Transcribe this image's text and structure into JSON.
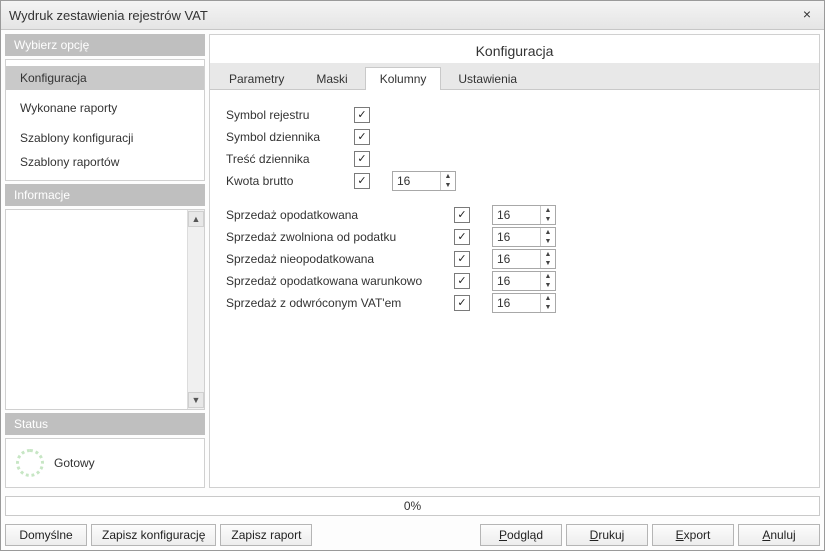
{
  "window": {
    "title": "Wydruk zestawienia rejestrów VAT"
  },
  "sidebar": {
    "options_header": "Wybierz opcję",
    "items": [
      {
        "label": "Konfiguracja",
        "selected": true
      },
      {
        "label": "Wykonane raporty",
        "selected": false
      },
      {
        "label": "Szablony konfiguracji",
        "selected": false
      },
      {
        "label": "Szablony raportów",
        "selected": false
      }
    ],
    "info_header": "Informacje",
    "status_header": "Status",
    "status_text": "Gotowy"
  },
  "main": {
    "title": "Konfiguracja",
    "tabs": [
      {
        "label": "Parametry",
        "active": false
      },
      {
        "label": "Maski",
        "active": false
      },
      {
        "label": "Kolumny",
        "active": true
      },
      {
        "label": "Ustawienia",
        "active": false
      }
    ],
    "columns_tab": {
      "group1": [
        {
          "label": "Symbol rejestru",
          "checked": true,
          "spinner": null
        },
        {
          "label": "Symbol dziennika",
          "checked": true,
          "spinner": null
        },
        {
          "label": "Treść dziennika",
          "checked": true,
          "spinner": null
        },
        {
          "label": "Kwota brutto",
          "checked": true,
          "spinner": "16"
        }
      ],
      "group2": [
        {
          "label": "Sprzedaż opodatkowana",
          "checked": true,
          "spinner": "16"
        },
        {
          "label": "Sprzedaż zwolniona od podatku",
          "checked": true,
          "spinner": "16"
        },
        {
          "label": "Sprzedaż nieopodatkowana",
          "checked": true,
          "spinner": "16"
        },
        {
          "label": "Sprzedaż opodatkowana warunkowo",
          "checked": true,
          "spinner": "16"
        },
        {
          "label": "Sprzedaż z odwróconym VAT'em",
          "checked": true,
          "spinner": "16"
        }
      ]
    }
  },
  "progress": {
    "text": "0%"
  },
  "footer": {
    "left_buttons": [
      {
        "label": "Domyślne"
      },
      {
        "label": "Zapisz konfigurację"
      },
      {
        "label": "Zapisz raport"
      }
    ],
    "right_buttons": [
      {
        "pre": "",
        "ul": "P",
        "post": "odgląd"
      },
      {
        "pre": "",
        "ul": "D",
        "post": "rukuj"
      },
      {
        "pre": "",
        "ul": "E",
        "post": "xport"
      },
      {
        "pre": "",
        "ul": "A",
        "post": "nuluj"
      }
    ]
  },
  "colors": {
    "header_bg": "#bfbfbf",
    "selected_bg": "#c9c9c9",
    "border": "#d0d0d0",
    "tabstrip_bg": "#e8e8e8"
  }
}
